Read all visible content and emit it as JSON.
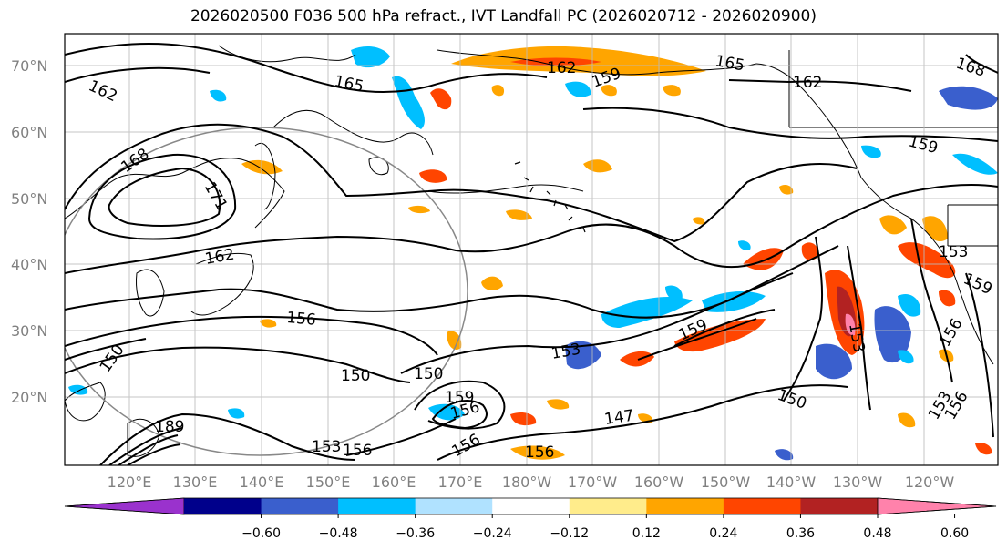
{
  "title": "2026020500 F036 500 hPa refract., IVT Landfall PC (2026020712 - 2026020900)",
  "latitude_labels": [
    "70°N",
    "60°N",
    "50°N",
    "40°N",
    "30°N",
    "20°N"
  ],
  "longitude_labels": [
    "120°E",
    "130°E",
    "140°E",
    "150°E",
    "160°E",
    "170°E",
    "180°W",
    "170°W",
    "160°W",
    "150°W",
    "140°W",
    "130°W",
    "120°W"
  ],
  "colorbar": {
    "tick_labels": [
      "−0.60",
      "−0.48",
      "−0.36",
      "−0.24",
      "−0.12",
      "0.12",
      "0.24",
      "0.36",
      "0.48",
      "0.60"
    ],
    "colors": [
      "#9a32cd",
      "#00008b",
      "#3a5fcd",
      "#00bfff",
      "#b0e2ff",
      "#ffffff",
      "#ffec8b",
      "#ffa500",
      "#ff4500",
      "#b22222",
      "#ff82ab"
    ]
  },
  "contour_labels": [
    {
      "text": "162"
    },
    {
      "text": "165"
    },
    {
      "text": "162"
    },
    {
      "text": "165"
    },
    {
      "text": "168"
    },
    {
      "text": "159"
    },
    {
      "text": "162"
    },
    {
      "text": "168"
    },
    {
      "text": "171"
    },
    {
      "text": "162"
    },
    {
      "text": "159"
    },
    {
      "text": "156"
    },
    {
      "text": "150"
    },
    {
      "text": "150"
    },
    {
      "text": "150"
    },
    {
      "text": "153"
    },
    {
      "text": "159"
    },
    {
      "text": "159"
    },
    {
      "text": "156"
    },
    {
      "text": "147"
    },
    {
      "text": "150"
    },
    {
      "text": "153"
    },
    {
      "text": "156"
    },
    {
      "text": "156"
    },
    {
      "text": "156"
    },
    {
      "text": "153"
    },
    {
      "text": "159"
    },
    {
      "text": "153"
    },
    {
      "text": "156"
    },
    {
      "text": "156"
    },
    {
      "text": "153"
    },
    {
      "text": "189"
    }
  ]
}
